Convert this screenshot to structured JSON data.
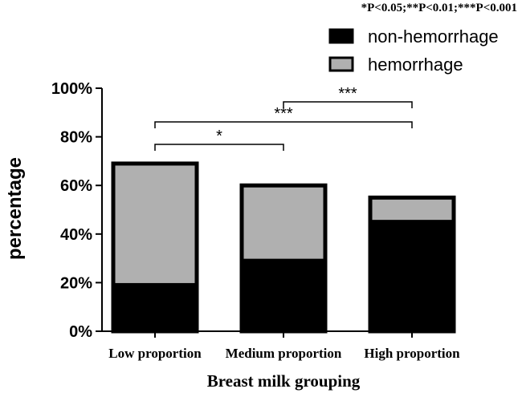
{
  "chart_data": {
    "type": "bar",
    "stacked": true,
    "categories": [
      "Low proportion",
      "Medium proportion",
      "High proportion"
    ],
    "series": [
      {
        "name": "non-hemorrhage",
        "color": "#000000",
        "values": [
          19,
          29,
          45
        ]
      },
      {
        "name": "hemorrhage",
        "color": "#b0b0b0",
        "values": [
          50,
          31,
          10
        ]
      }
    ],
    "ylim": [
      0,
      100
    ],
    "yticks": [
      0,
      20,
      40,
      60,
      80,
      100
    ],
    "ytick_labels": [
      "0%",
      "20%",
      "40%",
      "60%",
      "80%",
      "100%"
    ],
    "xlabel": "Breast milk grouping",
    "ylabel": "percentage",
    "legend_position": "top-right",
    "significance_note": "*P<0.05;**P<0.01;***P<0.001",
    "comparisons": [
      {
        "from": "Low proportion",
        "to": "Medium proportion",
        "label": "*",
        "level": 1
      },
      {
        "from": "Low proportion",
        "to": "High proportion",
        "label": "***",
        "level": 2
      },
      {
        "from": "Medium proportion",
        "to": "High proportion",
        "label": "***",
        "level": 3
      }
    ]
  }
}
